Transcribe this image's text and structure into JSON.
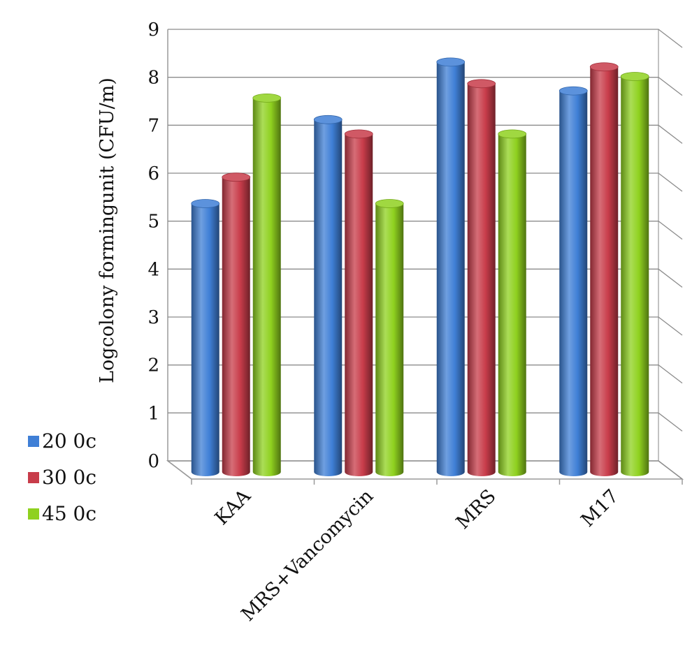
{
  "chart_data": {
    "type": "bar",
    "style": "3d-cylinder",
    "title": "",
    "xlabel": "",
    "ylabel": "Logcolony formingunit (CFU/m)",
    "ylim": [
      0,
      9
    ],
    "yticks": [
      "0",
      "1",
      "2",
      "3",
      "4",
      "5",
      "6",
      "7",
      "8",
      "9"
    ],
    "grid": true,
    "legend_position": "left",
    "categories": [
      "KAA",
      "MRS+Vancomycin",
      "MRS",
      "M17"
    ],
    "series": [
      {
        "name": "20 0c",
        "color": "#3f7fd6",
        "values": [
          5.6,
          7.35,
          8.55,
          7.95
        ]
      },
      {
        "name": "30 0c",
        "color": "#c83c4a",
        "values": [
          6.15,
          7.05,
          8.1,
          8.45
        ]
      },
      {
        "name": "45 0c",
        "color": "#8fd11f",
        "values": [
          7.8,
          5.6,
          7.05,
          8.25
        ]
      }
    ]
  }
}
